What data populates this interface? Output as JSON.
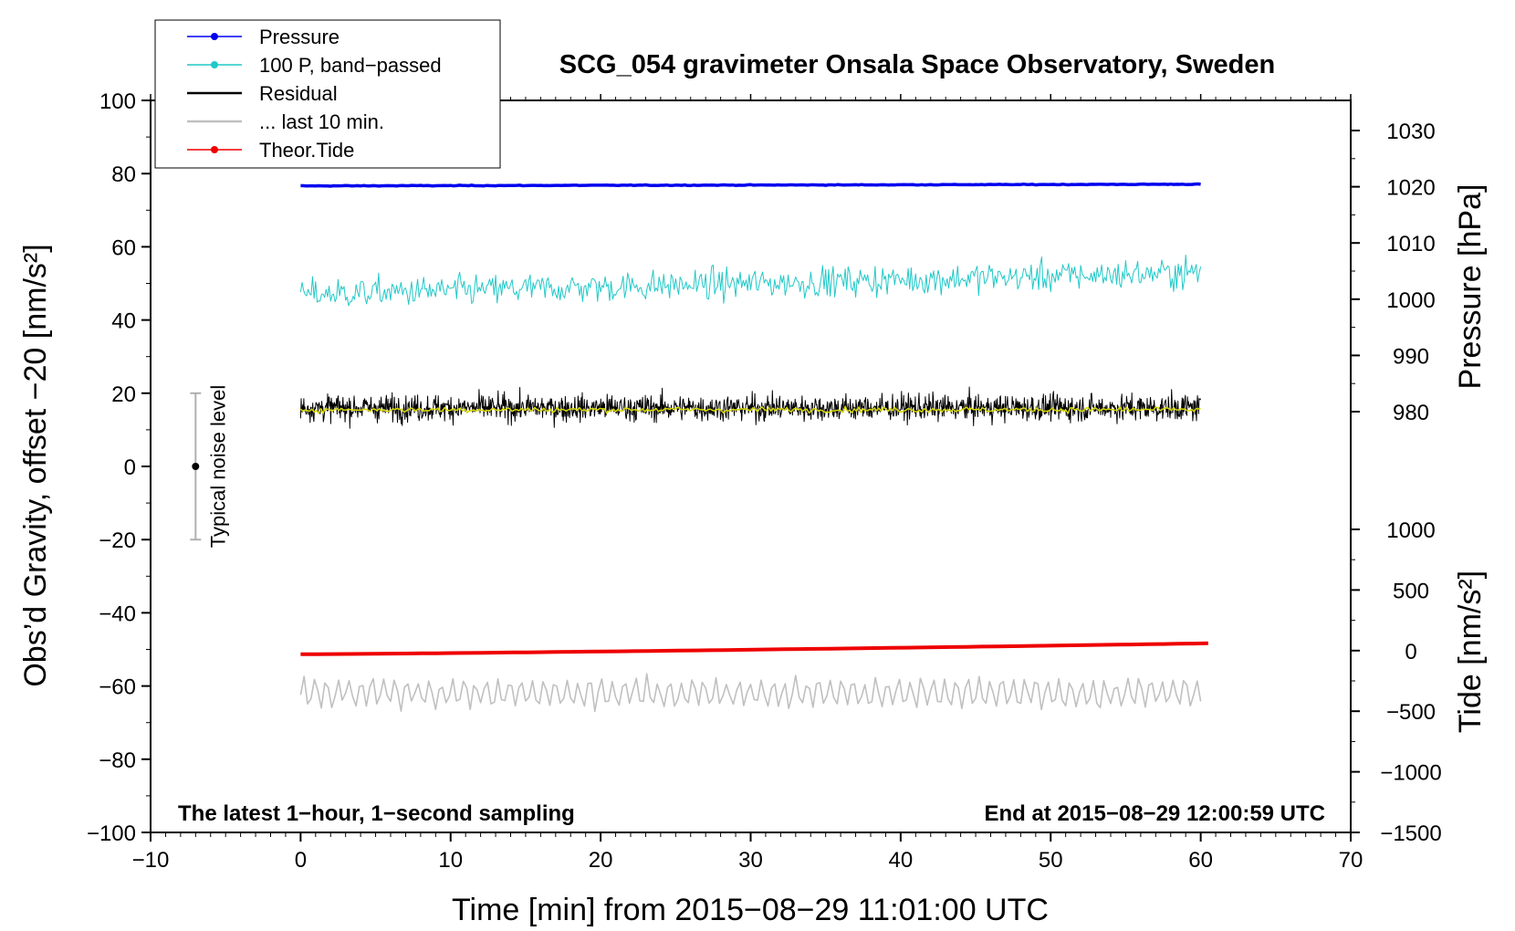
{
  "chart_data": {
    "type": "line",
    "title": "SCG_054 gravimeter Onsala Space Observatory, Sweden",
    "xlabel": "Time [min] from 2015−08−29 11:01:00 UTC",
    "ylabel_left": "Obs’d Gravity, offset −20 [nm/s²]",
    "ylabel_right_pressure": "Pressure [hPa]",
    "ylabel_right_tide": "Tide [nm/s²]",
    "xlim": [
      -10,
      70
    ],
    "ylim": [
      -100,
      100
    ],
    "pressure_range": [
      1030,
      980
    ],
    "tide_range": [
      -1500,
      1000
    ],
    "x_ticks": [
      {
        "value": -10,
        "label": "−10"
      },
      {
        "value": 0,
        "label": "0"
      },
      {
        "value": 10,
        "label": "10"
      },
      {
        "value": 20,
        "label": "20"
      },
      {
        "value": 30,
        "label": "30"
      },
      {
        "value": 40,
        "label": "40"
      },
      {
        "value": 50,
        "label": "50"
      },
      {
        "value": 60,
        "label": "60"
      },
      {
        "value": 70,
        "label": "70"
      }
    ],
    "y_ticks": [
      {
        "value": 100,
        "label": "100"
      },
      {
        "value": 80,
        "label": "80"
      },
      {
        "value": 60,
        "label": "60"
      },
      {
        "value": 40,
        "label": "40"
      },
      {
        "value": 20,
        "label": "20"
      },
      {
        "value": 0,
        "label": "0"
      },
      {
        "value": -20,
        "label": "−20"
      },
      {
        "value": -40,
        "label": "−40"
      },
      {
        "value": -60,
        "label": "−60"
      },
      {
        "value": -80,
        "label": "−80"
      },
      {
        "value": -100,
        "label": "−100"
      }
    ],
    "pressure_ticks": [
      {
        "value": 1030,
        "label": "1030"
      },
      {
        "value": 1020,
        "label": "1020"
      },
      {
        "value": 1010,
        "label": "1010"
      },
      {
        "value": 1000,
        "label": "1000"
      },
      {
        "value": 990,
        "label": "990"
      },
      {
        "value": 980,
        "label": "980"
      }
    ],
    "tide_ticks": [
      {
        "value": 1000,
        "label": "1000"
      },
      {
        "value": 500,
        "label": "500"
      },
      {
        "value": 0,
        "label": "0"
      },
      {
        "value": -500,
        "label": "−500"
      },
      {
        "value": -1000,
        "label": "−1000"
      },
      {
        "value": -1500,
        "label": "−1500"
      }
    ],
    "legend": [
      {
        "label": "Pressure",
        "color": "#0000ee",
        "marker": true
      },
      {
        "label": "100 P, band−passed",
        "color": "#22c8c8",
        "marker": true
      },
      {
        "label": "Residual",
        "color": "#000000",
        "marker": false
      },
      {
        "label": "... last 10 min.",
        "color": "#c0c0c0",
        "marker": false
      },
      {
        "label": "Theor.Tide",
        "color": "#ee0000",
        "marker": true
      }
    ],
    "series": [
      {
        "name": "Pressure",
        "color": "#0000ee",
        "axis": "pressure",
        "x_range": [
          0,
          60
        ],
        "mean": 1020.3,
        "trend": 0.15,
        "noise": 0.05
      },
      {
        "name": "100 P, band-passed",
        "color": "#22c8c8",
        "axis": "left",
        "x_range": [
          0,
          60
        ],
        "mean": 50,
        "trend": 3,
        "noise": 3.5
      },
      {
        "name": "Residual",
        "color": "#000000",
        "axis": "left",
        "x_range": [
          0,
          60
        ],
        "mean": 16,
        "trend": 0,
        "noise": 3
      },
      {
        "name": "Residual smoothed",
        "color": "#d8d800",
        "axis": "left",
        "x_range": [
          0,
          60
        ],
        "mean": 15.5,
        "trend": 0,
        "noise": 0.6
      },
      {
        "name": "... last 10 min.",
        "color": "#c0c0c0",
        "axis": "left",
        "x_range": [
          0,
          60
        ],
        "mean": -62,
        "trend": 0,
        "noise": 3
      },
      {
        "name": "Theor.Tide",
        "color": "#ee0000",
        "axis": "tide",
        "x_range": [
          0,
          60.5
        ],
        "start": -30,
        "end": 60
      }
    ],
    "noise_bar": {
      "label": "Typical noise level",
      "x": -7,
      "center": 0,
      "low": -20,
      "high": 20
    },
    "annotations": {
      "left": "The latest 1−hour, 1−second sampling",
      "right": "End at 2015−08−29 12:00:59 UTC"
    }
  }
}
